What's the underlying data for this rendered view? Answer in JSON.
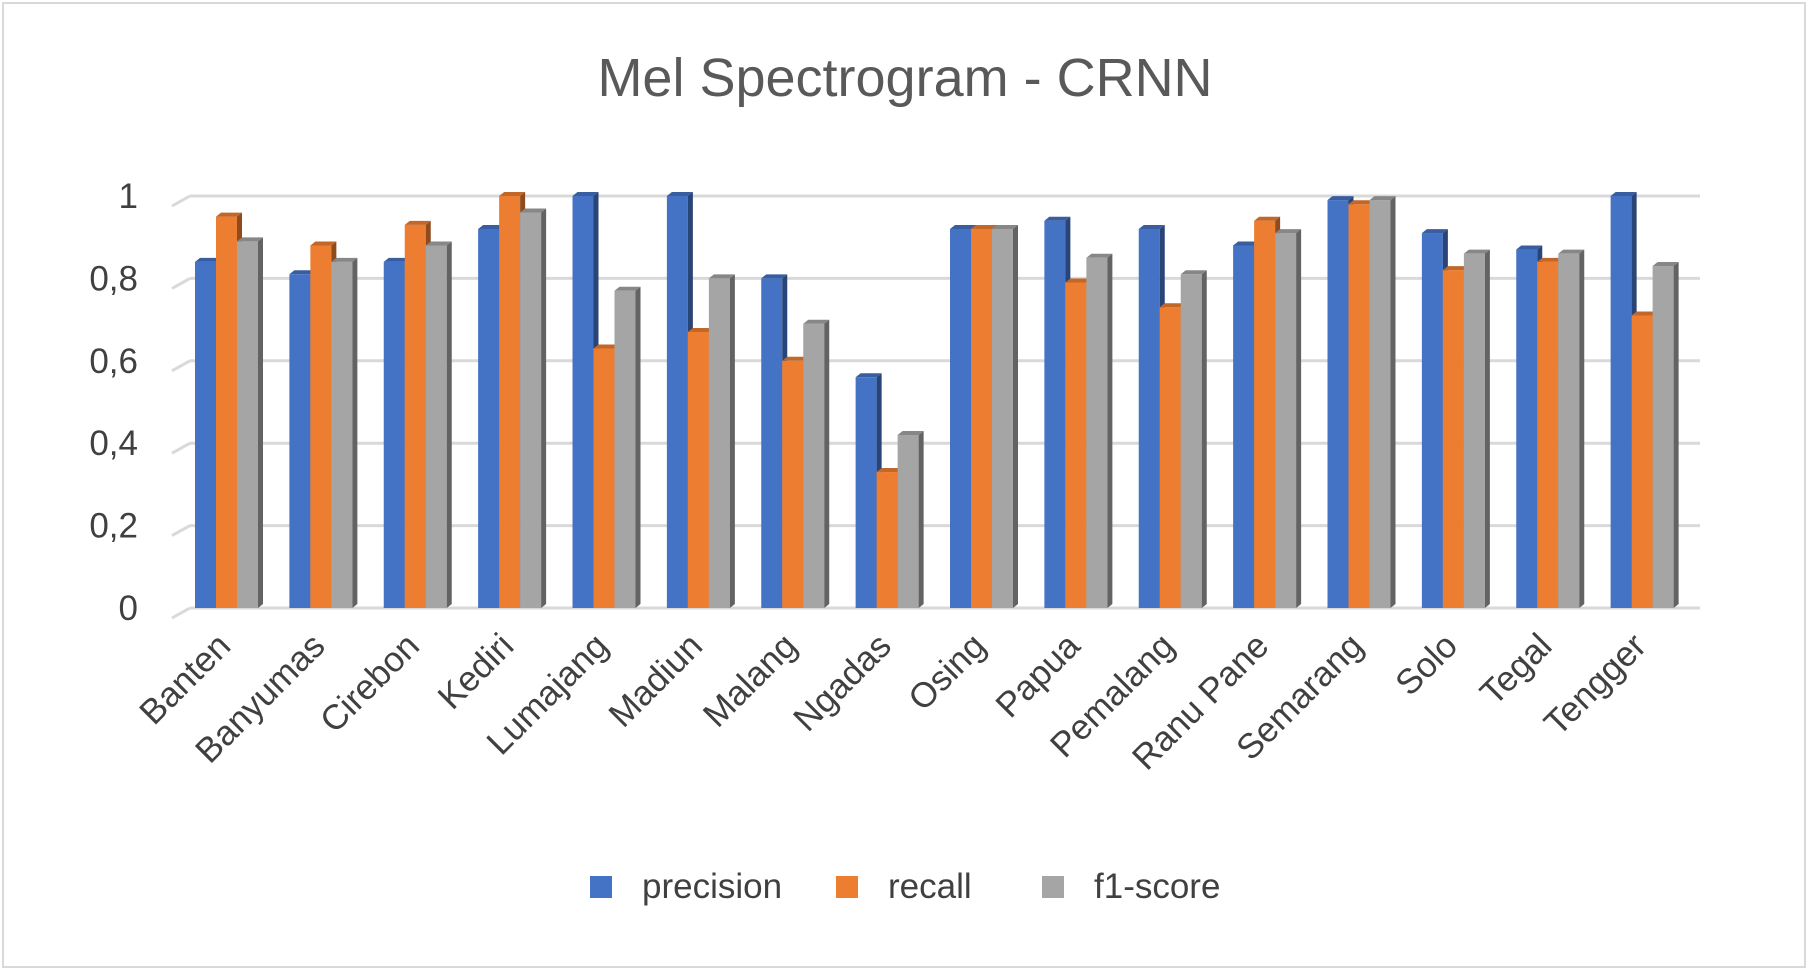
{
  "chart_data": {
    "type": "bar",
    "title": "Mel Spectrogram - CRNN",
    "xlabel": "",
    "ylabel": "",
    "ylim": [
      0,
      1
    ],
    "yticks": [
      "0",
      "0,2",
      "0,4",
      "0,6",
      "0,8",
      "1"
    ],
    "grid": true,
    "legend_position": "bottom",
    "categories": [
      "Banten",
      "Banyumas",
      "Cirebon",
      "Kediri",
      "Lumajang",
      "Madiun",
      "Malang",
      "Ngadas",
      "Osing",
      "Papua",
      "Pemalang",
      "Ranu Pane",
      "Semarang",
      "Solo",
      "Tegal",
      "Tengger"
    ],
    "series": [
      {
        "name": "precision",
        "color": "#4472C4",
        "values": [
          0.84,
          0.81,
          0.84,
          0.92,
          1.0,
          1.0,
          0.8,
          0.56,
          0.92,
          0.94,
          0.92,
          0.88,
          0.99,
          0.91,
          0.87,
          1.0
        ]
      },
      {
        "name": "recall",
        "color": "#ED7D31",
        "values": [
          0.95,
          0.88,
          0.93,
          1.0,
          0.63,
          0.67,
          0.6,
          0.33,
          0.92,
          0.79,
          0.73,
          0.94,
          0.98,
          0.82,
          0.84,
          0.71
        ]
      },
      {
        "name": "f1-score",
        "color": "#A5A5A5",
        "values": [
          0.89,
          0.84,
          0.88,
          0.96,
          0.77,
          0.8,
          0.69,
          0.42,
          0.92,
          0.85,
          0.81,
          0.91,
          0.99,
          0.86,
          0.86,
          0.83
        ]
      }
    ]
  }
}
